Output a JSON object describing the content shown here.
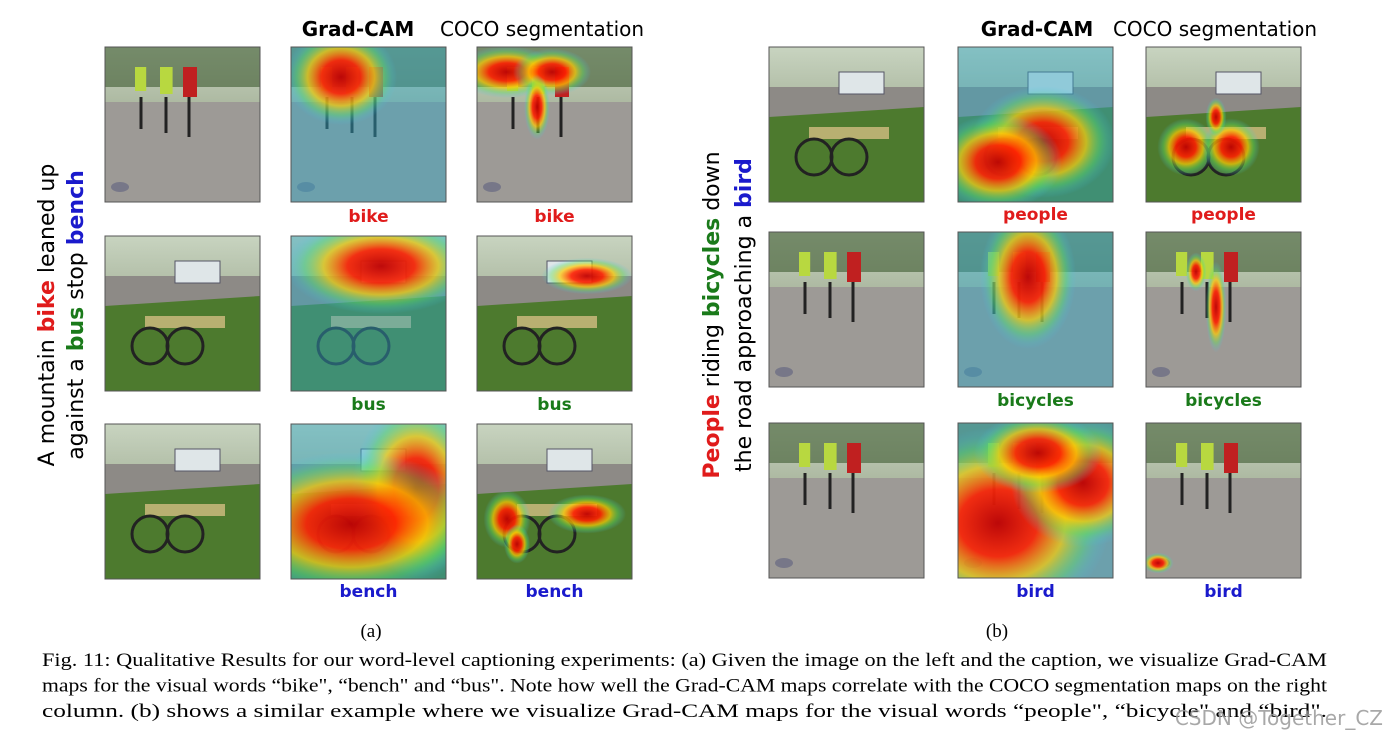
{
  "panels": [
    {
      "headers": [
        "Grad-CAM",
        "COCO segmentation"
      ],
      "caption_lines": [
        [
          {
            "text": "A mountain "
          },
          {
            "text": "bike",
            "color": "#e01b1b"
          },
          {
            "text": " leaned up"
          }
        ],
        [
          {
            "text": "against a "
          },
          {
            "text": "bus",
            "color": "#1a7a1a"
          },
          {
            "text": " stop "
          },
          {
            "text": "bench",
            "color": "#1a1acc"
          }
        ]
      ],
      "rows": [
        {
          "labels": [
            "bike",
            "bike"
          ],
          "color": "#e01b1b"
        },
        {
          "labels": [
            "bus",
            "bus"
          ],
          "color": "#1a7a1a"
        },
        {
          "labels": [
            "bench",
            "bench"
          ],
          "color": "#1a1acc"
        }
      ],
      "panel_label": "(a)"
    },
    {
      "headers": [
        "Grad-CAM",
        "COCO segmentation"
      ],
      "caption_lines": [
        [
          {
            "text": "People",
            "color": "#e01b1b"
          },
          {
            "text": " riding "
          },
          {
            "text": "bicycles",
            "color": "#1a7a1a"
          },
          {
            "text": " down"
          }
        ],
        [
          {
            "text": "the road approaching a "
          },
          {
            "text": "bird",
            "color": "#1a1acc"
          }
        ]
      ],
      "rows": [
        {
          "labels": [
            "people",
            "people"
          ],
          "color": "#e01b1b"
        },
        {
          "labels": [
            "bicycles",
            "bicycles"
          ],
          "color": "#1a7a1a"
        },
        {
          "labels": [
            "bird",
            "bird"
          ],
          "color": "#1a1acc"
        }
      ],
      "panel_label": "(b)"
    }
  ],
  "figure_caption": [
    "Fig. 11: Qualitative Results for our word-level captioning experiments: (a) Given the image on the left and the caption, we visualize Grad-CAM",
    "maps for the visual words “bike\", “bench\" and “bus\". Note how well the Grad-CAM maps correlate with the COCO segmentation maps on the right",
    "column. (b) shows a similar example where we visualize Grad-CAM maps for the visual words “people\", “bicycle\" and “bird\"."
  ],
  "watermark": "CSDN @Together_CZ"
}
